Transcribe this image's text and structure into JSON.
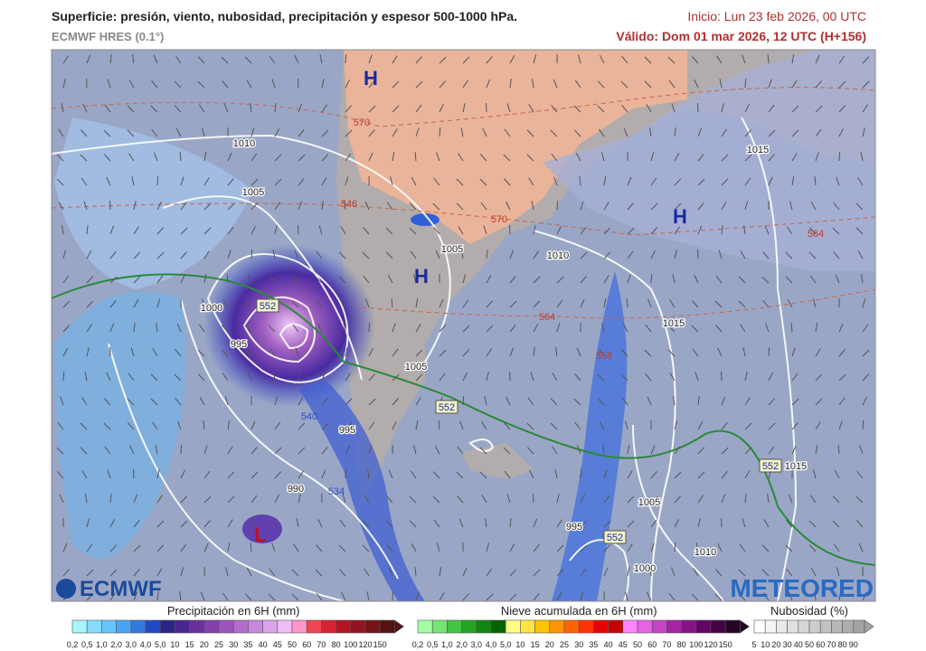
{
  "header": {
    "title": "Superficie: presión, viento, nubosidad, precipitación y espesor 500-1000 hPa.",
    "model": "ECMWF HRES (0.1°)",
    "init": "Inicio: Lun 23 feb 2026, 00 UTC",
    "valid": "Válido: Dom 01 mar 2026, 12 UTC (H+156)"
  },
  "map": {
    "pressure_centers": [
      "H",
      "H",
      "H",
      "L"
    ],
    "isobar_labels": [
      "1010",
      "1005",
      "1005",
      "1010",
      "1015",
      "1015",
      "1000",
      "995",
      "1005",
      "995",
      "990",
      "995",
      "1005",
      "1000",
      "1010",
      "1015"
    ],
    "thickness_labels": [
      "570",
      "546",
      "570",
      "564",
      "564",
      "558",
      "540",
      "534",
      "552",
      "552",
      "552",
      "552"
    ]
  },
  "logos": {
    "left": "ECMWF",
    "right": "METEORED"
  },
  "legends": [
    {
      "title": "Precipitación en 6H (mm)",
      "labels": [
        "0,2",
        "0,5",
        "1,0",
        "2,0",
        "3,0",
        "4,0",
        "5,0",
        "10",
        "15",
        "20",
        "25",
        "30",
        "35",
        "40",
        "45",
        "50",
        "60",
        "70",
        "80",
        "100",
        "120",
        "150"
      ],
      "colors": [
        "#a8f4ff",
        "#86dcff",
        "#66c4ff",
        "#48a4f4",
        "#3478e0",
        "#2448c4",
        "#2a2486",
        "#4a2490",
        "#6a309e",
        "#8440ae",
        "#9c54c0",
        "#b46ccc",
        "#c886dc",
        "#dca2ec",
        "#f0bcf8",
        "#ff96c8",
        "#f04452",
        "#d42434",
        "#b41424",
        "#941222",
        "#741414",
        "#541212"
      ]
    },
    {
      "title": "Nieve acumulada en 6H (mm)",
      "labels": [
        "0,2",
        "0,5",
        "1,0",
        "2,0",
        "3,0",
        "4,0",
        "5,0",
        "10",
        "15",
        "20",
        "25",
        "30",
        "35",
        "40",
        "45",
        "50",
        "60",
        "70",
        "80",
        "100",
        "120",
        "150"
      ],
      "colors": [
        "#a4ffa4",
        "#74e474",
        "#44c444",
        "#24a424",
        "#128412",
        "#006400",
        "#ffff84",
        "#ffe444",
        "#ffc404",
        "#ff9404",
        "#ff6404",
        "#ff3404",
        "#e40404",
        "#c40404",
        "#ff84ff",
        "#e464e4",
        "#c444c4",
        "#a424a4",
        "#841484",
        "#640464",
        "#440444",
        "#240424"
      ]
    },
    {
      "title": "Nubosidad (%)",
      "labels": [
        5,
        10,
        20,
        30,
        40,
        50,
        60,
        70,
        80,
        90
      ],
      "colors": [
        "#ffffff",
        "#f4f4f4",
        "#eaeaea",
        "#e0e0e0",
        "#d6d6d6",
        "#cccccc",
        "#c2c2c2",
        "#b8b8b8",
        "#aeaeae",
        "#a4a4a4"
      ]
    }
  ]
}
